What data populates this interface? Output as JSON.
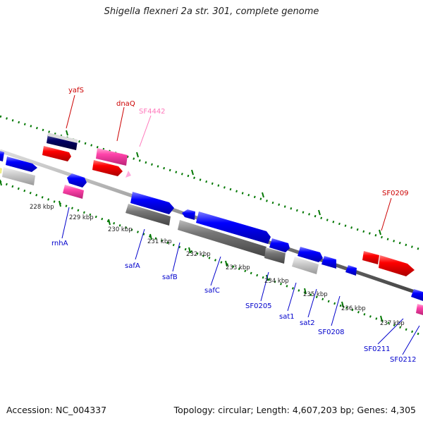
{
  "title": "Shigella flexneri 2a str. 301, complete genome",
  "footer": {
    "accession": "Accession: NC_004337",
    "summary": "Topology: circular; Length: 4,607,203 bp; Genes: 4,305"
  },
  "scale_ticks": [
    "228 kbp",
    "229 kbp",
    "230 kbp",
    "231 kbp",
    "232 kbp",
    "233 kbp",
    "234 kbp",
    "235 kbp",
    "236 kbp",
    "237 kbp"
  ],
  "gene_labels": {
    "yafS": "yafS",
    "dnaQ": "dnaQ",
    "SF4442": "SF4442",
    "SF0209": "SF0209",
    "rnhA": "rnhA",
    "safA": "safA",
    "safB": "safB",
    "safC": "safC",
    "SF0205": "SF0205",
    "sat1": "sat1",
    "sat2": "sat2",
    "SF0208": "SF0208",
    "SF0211": "SF0211",
    "SF0212": "SF0212"
  },
  "colors": {
    "red": "#ff0000",
    "pink": "#ff44aa",
    "light_pink": "#ffaadd",
    "blue": "#0000ff",
    "gray": "#777777",
    "light_gray": "#cccccc",
    "navy": "#000066",
    "green_tick": "#007700",
    "blue_label": "#0000cc"
  }
}
